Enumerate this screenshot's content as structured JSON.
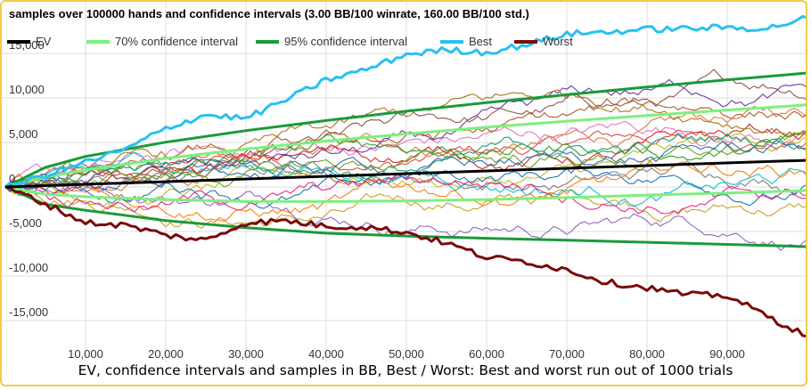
{
  "title": "samples over 100000 hands and confidence intervals (3.00 BB/100 winrate, 160.00 BB/100 std.)",
  "caption": "EV, confidence intervals and samples in BB, Best / Worst: Best and worst run out of 1000 trials",
  "legend": {
    "ev": "EV",
    "ci70": "70% confidence interval",
    "ci95": "95% confidence interval",
    "best": "Best",
    "worst": "Worst"
  },
  "colors": {
    "ev": "#000000",
    "ci70": "#7cf07c",
    "ci95": "#1a9a3a",
    "best": "#29c0f0",
    "worst": "#7a0a0a",
    "samples": [
      "#d94f4f",
      "#e07b39",
      "#c9a227",
      "#8c564b",
      "#9467bd",
      "#e377c2",
      "#7f7f7f",
      "#bcbd22",
      "#17becf",
      "#1f77b4",
      "#2ca02c",
      "#ff7f0e",
      "#d62728",
      "#6a3d9a",
      "#b15928",
      "#a6761d",
      "#1b9e77",
      "#e7298a",
      "#66a61e",
      "#386cb0"
    ]
  },
  "chart_data": {
    "type": "line",
    "title": "samples over 100000 hands and confidence intervals (3.00 BB/100 winrate, 160.00 BB/100 std.)",
    "xlabel": "",
    "ylabel": "",
    "xlim": [
      0,
      100000
    ],
    "ylim": [
      -17500,
      17500
    ],
    "x_ticks": [
      10000,
      20000,
      30000,
      40000,
      50000,
      60000,
      70000,
      80000,
      90000
    ],
    "x_tick_labels": [
      "10,000",
      "20,000",
      "30,000",
      "40,000",
      "50,000",
      "60,000",
      "70,000",
      "80,000",
      "90,000"
    ],
    "y_ticks": [
      -15000,
      -10000,
      -5000,
      0,
      5000,
      10000,
      15000
    ],
    "y_tick_labels": [
      "-15,000",
      "-10,000",
      "-5,000",
      "0",
      "5,000",
      "10,000",
      "15,000"
    ],
    "grid": true,
    "legend_position": "top-left",
    "series": [
      {
        "name": "EV",
        "x": [
          0,
          100000
        ],
        "y": [
          0,
          3000
        ]
      },
      {
        "name": "70% confidence interval",
        "x": [
          0,
          5000,
          10000,
          20000,
          30000,
          40000,
          50000,
          60000,
          70000,
          80000,
          90000,
          100000
        ],
        "y_upper": [
          0,
          1110,
          1900,
          3220,
          4260,
          5160,
          5960,
          6710,
          7390,
          8030,
          8640,
          9220
        ],
        "y_lower": [
          0,
          -810,
          -1100,
          -1420,
          -1620,
          -1640,
          -1560,
          -1410,
          -1190,
          -910,
          -670,
          -400
        ]
      },
      {
        "name": "95% confidence interval",
        "x": [
          0,
          5000,
          10000,
          20000,
          30000,
          40000,
          50000,
          60000,
          70000,
          80000,
          90000,
          100000
        ],
        "y_upper": [
          0,
          2200,
          3430,
          5030,
          6330,
          7460,
          8510,
          9470,
          10360,
          11220,
          12040,
          12800
        ],
        "y_lower": [
          0,
          -1950,
          -2620,
          -3770,
          -4570,
          -5190,
          -5510,
          -5760,
          -5970,
          -6210,
          -6450,
          -6700
        ]
      },
      {
        "name": "Best",
        "x": [
          0,
          5000,
          10000,
          15000,
          20000,
          25000,
          30000,
          35000,
          40000,
          45000,
          50000,
          55000,
          60000,
          65000,
          70000,
          75000,
          80000,
          85000,
          90000,
          95000,
          100000
        ],
        "y": [
          0,
          1300,
          2800,
          4200,
          6600,
          8100,
          7700,
          9800,
          12000,
          13200,
          14900,
          15400,
          15100,
          16000,
          17200,
          17400,
          17700,
          17800,
          17900,
          17800,
          19000
        ]
      },
      {
        "name": "Worst",
        "x": [
          0,
          5000,
          10000,
          15000,
          20000,
          25000,
          30000,
          35000,
          40000,
          45000,
          50000,
          55000,
          60000,
          65000,
          70000,
          75000,
          80000,
          85000,
          90000,
          95000,
          100000
        ],
        "y": [
          0,
          -1900,
          -4000,
          -4300,
          -5400,
          -6000,
          -4000,
          -3800,
          -4400,
          -4500,
          -5100,
          -6300,
          -7900,
          -8400,
          -9300,
          -10700,
          -11300,
          -12100,
          -12200,
          -14500,
          -16800
        ]
      }
    ],
    "sample_count_shown": 20
  }
}
